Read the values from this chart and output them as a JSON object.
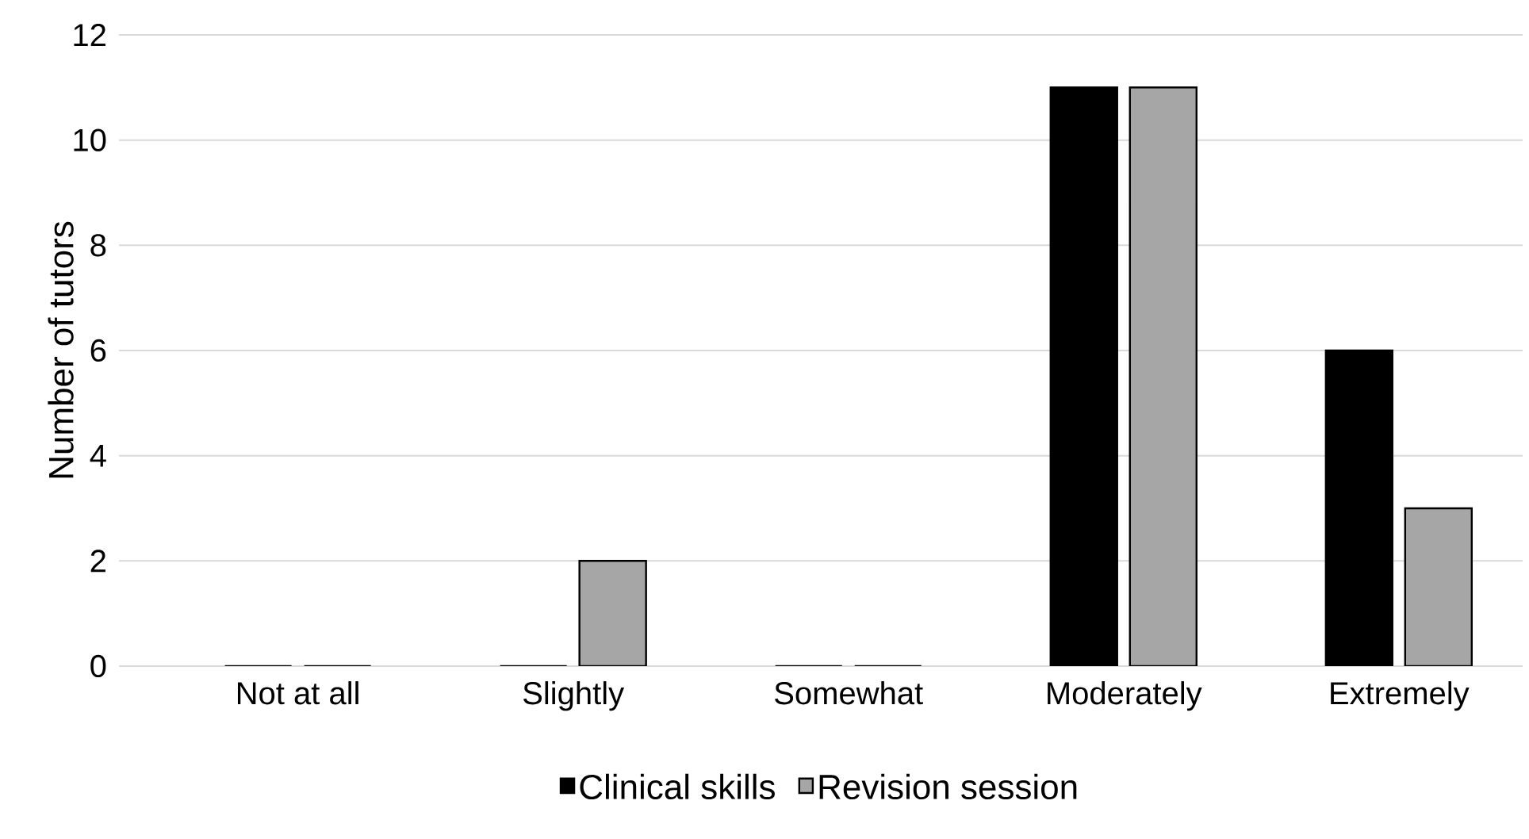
{
  "chart_data": {
    "type": "bar",
    "ylabel": "Number of tutors",
    "categories": [
      "Not at all",
      "Slightly",
      "Somewhat",
      "Moderately",
      "Extremely"
    ],
    "series": [
      {
        "name": "Clinical skills",
        "color": "#000000",
        "values": [
          0,
          0,
          0,
          11,
          6
        ]
      },
      {
        "name": "Revision session",
        "color": "#a6a6a6",
        "values": [
          0,
          2,
          0,
          11,
          3
        ]
      }
    ],
    "ylim": [
      0,
      12
    ],
    "yticks": [
      0,
      2,
      4,
      6,
      8,
      10,
      12
    ],
    "grid": "y",
    "legend": "bottom"
  }
}
